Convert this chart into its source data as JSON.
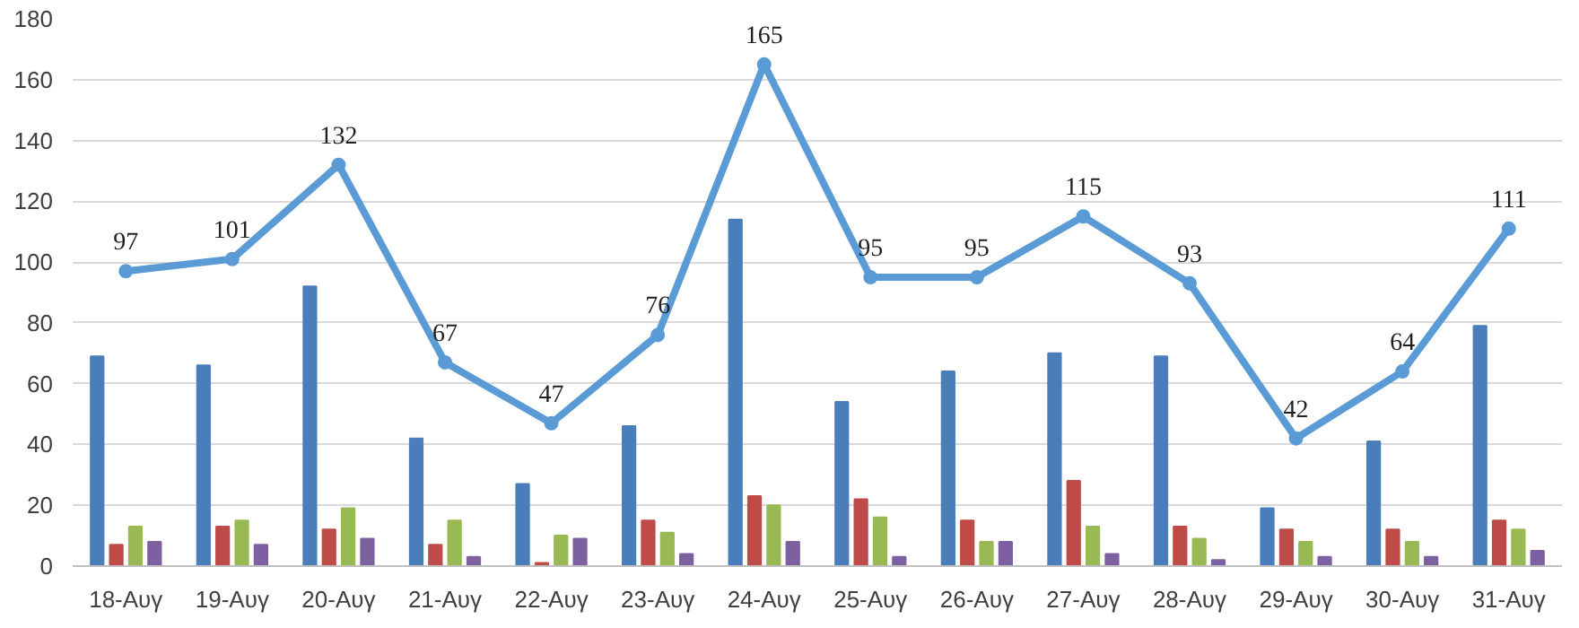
{
  "chart_data": {
    "type": "bar",
    "categories": [
      "18-Αυγ",
      "19-Αυγ",
      "20-Αυγ",
      "21-Αυγ",
      "22-Αυγ",
      "23-Αυγ",
      "24-Αυγ",
      "25-Αυγ",
      "26-Αυγ",
      "27-Αυγ",
      "28-Αυγ",
      "29-Αυγ",
      "30-Αυγ",
      "31-Αυγ"
    ],
    "series": [
      {
        "type": "line",
        "color": "#5b9bd5",
        "values": [
          97,
          101,
          132,
          67,
          47,
          76,
          165,
          95,
          95,
          115,
          93,
          42,
          64,
          111
        ],
        "value_labels": [
          "97",
          "101",
          "132",
          "67",
          "47",
          "76",
          "165",
          "95",
          "95",
          "115",
          "93",
          "42",
          "64",
          "111"
        ],
        "marker": "circle"
      },
      {
        "color": "#4a7ebb",
        "values": [
          69,
          66,
          92,
          42,
          27,
          46,
          114,
          54,
          64,
          70,
          69,
          19,
          41,
          79
        ]
      },
      {
        "color": "#be4b48",
        "values": [
          7,
          13,
          12,
          7,
          1,
          15,
          23,
          22,
          15,
          28,
          13,
          12,
          12,
          15
        ]
      },
      {
        "color": "#98b954",
        "values": [
          13,
          15,
          19,
          15,
          10,
          11,
          20,
          16,
          8,
          13,
          9,
          8,
          8,
          12
        ]
      },
      {
        "color": "#7d60a0",
        "values": [
          8,
          7,
          9,
          3,
          9,
          4,
          8,
          3,
          8,
          4,
          2,
          3,
          3,
          5
        ]
      }
    ],
    "ylim": [
      0,
      180
    ],
    "yticks": [
      0,
      20,
      40,
      60,
      80,
      100,
      120,
      140,
      160,
      180
    ],
    "grid": "y"
  }
}
